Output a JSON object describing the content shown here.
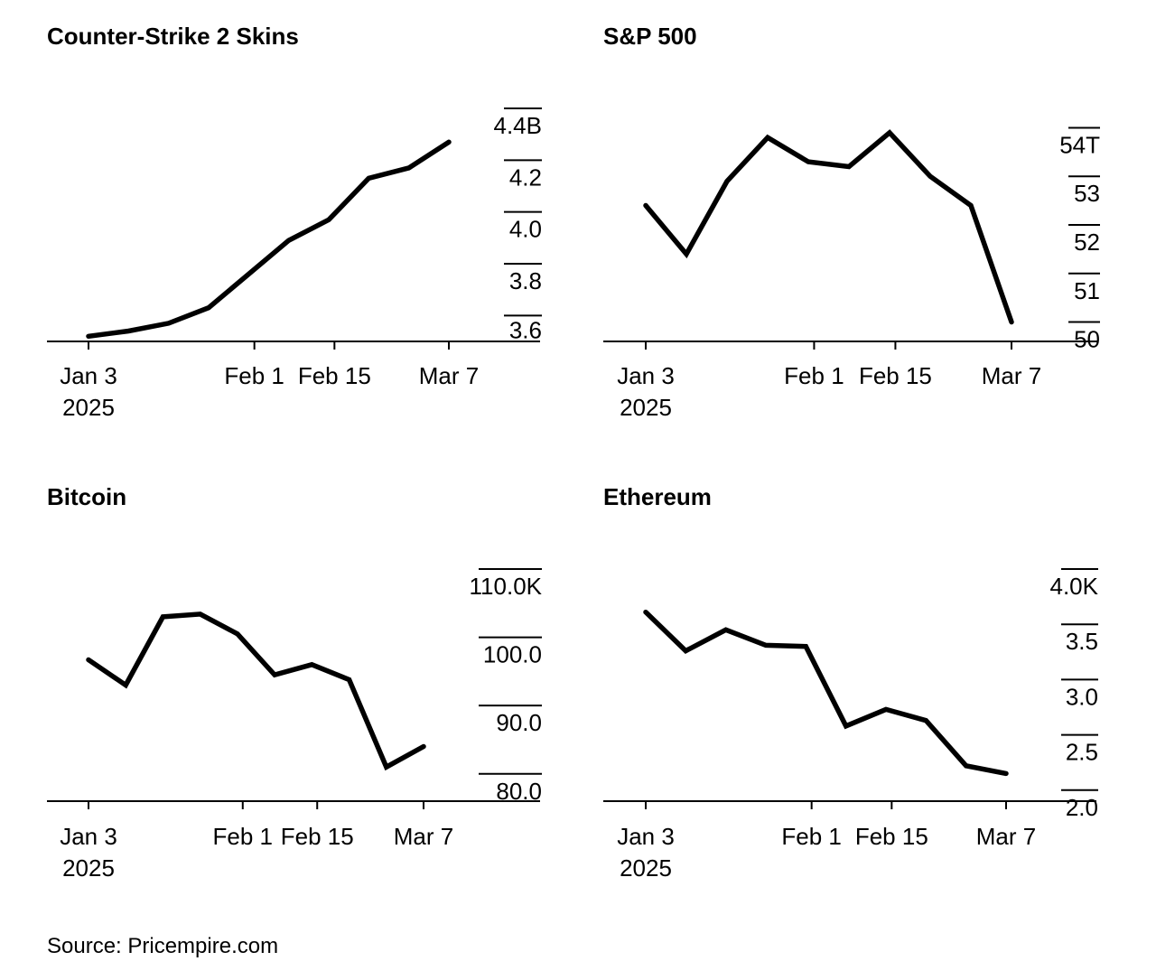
{
  "source": "Source: Pricempire.com",
  "chart_data": [
    {
      "type": "line",
      "title": "Counter-Strike 2 Skins",
      "x": [
        "2025-01-03",
        "2025-01-10",
        "2025-01-17",
        "2025-01-24",
        "2025-01-31",
        "2025-02-07",
        "2025-02-14",
        "2025-02-21",
        "2025-02-28",
        "2025-03-07"
      ],
      "values": [
        3.52,
        3.54,
        3.57,
        3.63,
        3.76,
        3.89,
        3.97,
        4.13,
        4.17,
        4.27
      ],
      "ylim": [
        3.5,
        4.4
      ],
      "yticks": [
        "3.6",
        "3.8",
        "4.0",
        "4.2",
        "4.4B"
      ],
      "ytick_values": [
        3.6,
        3.8,
        4.0,
        4.2,
        4.4
      ],
      "xticks": [
        {
          "label": "Jan 3",
          "sub": "2025",
          "date": "2025-01-03"
        },
        {
          "label": "Feb 1",
          "date": "2025-02-01"
        },
        {
          "label": "Feb 15",
          "date": "2025-02-15"
        },
        {
          "label": "Mar 7",
          "date": "2025-03-07"
        }
      ],
      "grid": false
    },
    {
      "type": "line",
      "title": "S&P 500",
      "x": [
        "2025-01-03",
        "2025-01-10",
        "2025-01-17",
        "2025-01-24",
        "2025-01-31",
        "2025-02-07",
        "2025-02-14",
        "2025-02-21",
        "2025-02-28",
        "2025-03-07"
      ],
      "values": [
        52.4,
        51.4,
        52.9,
        53.8,
        53.3,
        53.2,
        53.9,
        53.0,
        52.4,
        50.0
      ],
      "ylim": [
        49.6,
        54.4
      ],
      "yticks": [
        "50",
        "51",
        "52",
        "53",
        "54T"
      ],
      "ytick_values": [
        50,
        51,
        52,
        53,
        54
      ],
      "xticks": [
        {
          "label": "Jan 3",
          "sub": "2025",
          "date": "2025-01-03"
        },
        {
          "label": "Feb 1",
          "date": "2025-02-01"
        },
        {
          "label": "Feb 15",
          "date": "2025-02-15"
        },
        {
          "label": "Mar 7",
          "date": "2025-03-07"
        }
      ],
      "grid": false
    },
    {
      "type": "line",
      "title": "Bitcoin",
      "x": [
        "2025-01-03",
        "2025-01-10",
        "2025-01-17",
        "2025-01-24",
        "2025-01-31",
        "2025-02-07",
        "2025-02-14",
        "2025-02-21",
        "2025-02-28",
        "2025-03-07"
      ],
      "values": [
        96.7,
        93.0,
        103.0,
        103.4,
        100.5,
        94.5,
        96.0,
        93.8,
        81.0,
        84.0
      ],
      "ylim": [
        76.0,
        110.0
      ],
      "yticks": [
        "80.0",
        "90.0",
        "100.0",
        "110.0K"
      ],
      "ytick_values": [
        80,
        90,
        100,
        110
      ],
      "xticks": [
        {
          "label": "Jan 3",
          "sub": "2025",
          "date": "2025-01-03"
        },
        {
          "label": "Feb 1",
          "date": "2025-02-01"
        },
        {
          "label": "Feb 15",
          "date": "2025-02-15"
        },
        {
          "label": "Mar 7",
          "date": "2025-03-07"
        }
      ],
      "grid": false
    },
    {
      "type": "line",
      "title": "Ethereum",
      "x": [
        "2025-01-03",
        "2025-01-10",
        "2025-01-17",
        "2025-01-24",
        "2025-01-31",
        "2025-02-07",
        "2025-02-14",
        "2025-02-21",
        "2025-02-28",
        "2025-03-07"
      ],
      "values": [
        3.61,
        3.26,
        3.45,
        3.31,
        3.3,
        2.58,
        2.73,
        2.63,
        2.22,
        2.15
      ],
      "ylim": [
        1.9,
        4.0
      ],
      "yticks": [
        "2.0",
        "2.5",
        "3.0",
        "3.5",
        "4.0K"
      ],
      "ytick_values": [
        2.0,
        2.5,
        3.0,
        3.5,
        4.0
      ],
      "xticks": [
        {
          "label": "Jan 3",
          "sub": "2025",
          "date": "2025-01-03"
        },
        {
          "label": "Feb 1",
          "date": "2025-02-01"
        },
        {
          "label": "Feb 15",
          "date": "2025-02-15"
        },
        {
          "label": "Mar 7",
          "date": "2025-03-07"
        }
      ],
      "grid": false
    }
  ]
}
